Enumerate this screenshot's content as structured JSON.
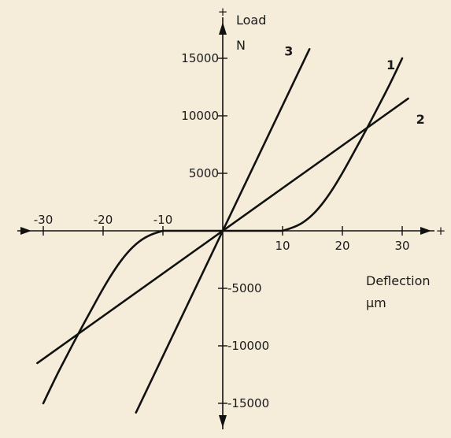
{
  "chart_data": {
    "type": "line",
    "x_axis": {
      "label": "Deflection",
      "unit": "µm",
      "tick_values": [
        -30,
        -20,
        -10,
        10,
        20,
        30
      ],
      "tick_labels": [
        "-30",
        "-20",
        "-10",
        "10",
        "20",
        "30"
      ],
      "end_symbol": "+",
      "range": [
        -33,
        33
      ]
    },
    "y_axis": {
      "label": "Load",
      "unit": "N",
      "tick_values": [
        15000,
        10000,
        5000,
        -5000,
        -10000,
        -15000
      ],
      "tick_labels": [
        "15000",
        "10000",
        "5000",
        "-5000",
        "-10000",
        "-15000"
      ],
      "end_symbol": "+",
      "range": [
        -16500,
        17500
      ]
    },
    "grid": false,
    "legend": "none",
    "series": [
      {
        "name": "1",
        "x": [
          -30,
          -28,
          -26,
          -24,
          -22,
          -20,
          -18,
          -16,
          -14,
          -12,
          -10,
          10,
          12,
          14,
          16,
          18,
          20,
          22,
          24,
          26,
          28,
          30
        ],
        "y": [
          -15000,
          -12800,
          -10800,
          -8800,
          -6900,
          -5000,
          -3300,
          -1900,
          -900,
          -300,
          0,
          0,
          300,
          900,
          1900,
          3300,
          5000,
          6900,
          8800,
          10800,
          12800,
          15000
        ]
      },
      {
        "name": "2",
        "x": [
          -31,
          31
        ],
        "y": [
          -11500,
          11500
        ]
      },
      {
        "name": "3",
        "x": [
          -14.5,
          14.5
        ],
        "y": [
          -15800,
          15800
        ]
      }
    ]
  }
}
